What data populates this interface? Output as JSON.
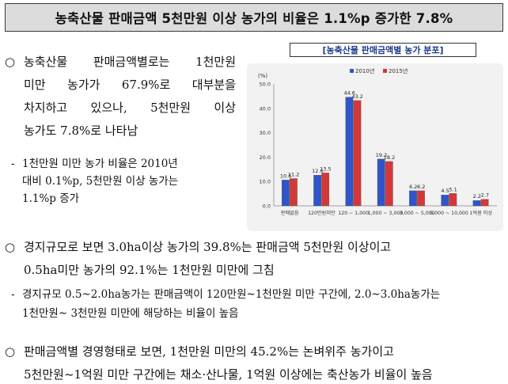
{
  "title": "농축산물 판매금액 5천만원 이상 농가의 비율은 1.1%p 증가한 7.8%",
  "bullet_mark": "○",
  "dash_mark": "-",
  "section1": {
    "lines": [
      "농축산물 판매금액별로는 1천만원",
      "미만 농가가 67.9%로 대부분을",
      "차지하고 있으나, 5천만원 이상",
      "농가도 7.8%로 나타남"
    ],
    "sub_lines": [
      "1천만원 미만 농가 비율은 2010년",
      "대비 0.1%p, 5천만원 이상 농가는",
      "1.1%p 증가"
    ]
  },
  "section2": {
    "lines": [
      "경지규모로 보면 3.0ha이상 농가의 39.8%는 판매금액 5천만원 이상이고",
      "0.5ha미만 농가의 92.1%는 1천만원 미만에 그침"
    ],
    "sub_lines": [
      "경지규모 0.5~2.0ha농가는 판매금액이 120만원~1천만원 미만 구간에, 2.0~3.0ha농가는",
      "1천만원~ 3천만원 미만에 해당하는 비율이 높음"
    ]
  },
  "section3": {
    "lines": [
      "판매금액별 경영형태로 보면, 1천만원 미만의 45.2%는 논벼위주 농가이고",
      "5천만원~1억원 미만 구간에는 채소·산나물, 1억원 이상에는 축산농가 비율이 높음"
    ]
  },
  "chart_data": {
    "type": "bar",
    "title": "[농축산물 판매금액별 농가 분포]",
    "ylabel": "(%)",
    "ylim": [
      0,
      50
    ],
    "yticks": [
      "0.0",
      "10.0",
      "20.0",
      "30.0",
      "40.0",
      "50.0"
    ],
    "categories": [
      "판매없음",
      "120만원미만",
      "120 ~ 1,000",
      "1,000 ~ 3,000",
      "3,000 ~ 5,000",
      "5,000 ~ 10,000",
      "1억원 이상"
    ],
    "series": [
      {
        "name": "2010년",
        "color": "#2f55c8",
        "values": [
          10.6,
          12.6,
          44.6,
          19.2,
          6.2,
          4.5,
          2.2
        ]
      },
      {
        "name": "2015년",
        "color": "#d23838",
        "values": [
          11.2,
          13.5,
          43.2,
          18.2,
          6.2,
          5.1,
          2.7
        ]
      }
    ],
    "value_labels": [
      [
        "10.6",
        "12.6",
        "44.6",
        "19.2",
        "6.2",
        "4.5",
        "2.2"
      ],
      [
        "11.2",
        "13.5",
        "43.2",
        "18.2",
        "6.2",
        "5.1",
        "2.7"
      ]
    ],
    "legend_position": "top-center",
    "grid": false
  }
}
